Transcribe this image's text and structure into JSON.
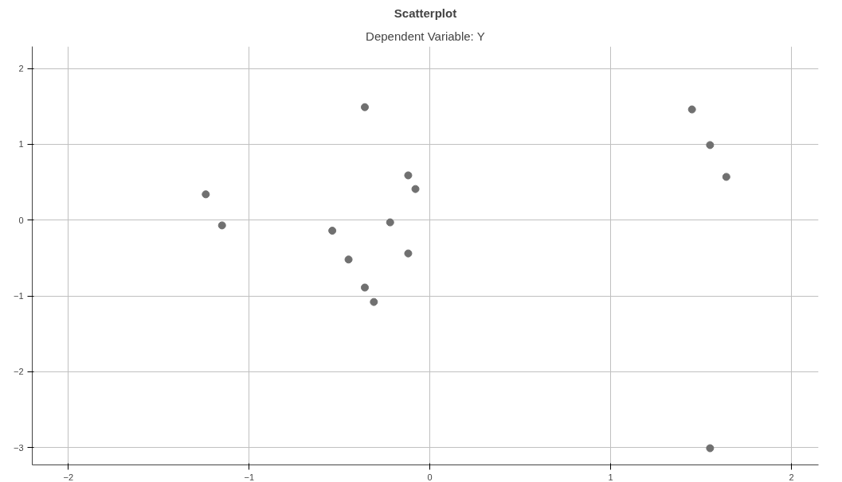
{
  "chart_data": {
    "type": "scatter",
    "title": "Scatterplot",
    "subtitle": "Dependent Variable: Y",
    "x": [
      -0.36,
      1.45,
      1.55,
      1.64,
      -0.12,
      -0.08,
      -1.24,
      -1.15,
      -0.54,
      -0.22,
      -0.12,
      -0.45,
      -0.36,
      -0.31,
      1.55
    ],
    "series": [
      {
        "color": "#707070",
        "values": [
          1.49,
          1.46,
          0.99,
          0.57,
          0.59,
          0.41,
          0.34,
          -0.07,
          -0.14,
          -0.03,
          -0.44,
          -0.52,
          -0.89,
          -1.08,
          -3.01
        ]
      }
    ],
    "xlim": [
      -2.2,
      2.15
    ],
    "ylim": [
      -3.23,
      2.29
    ],
    "xticks": [
      -2,
      -1,
      0,
      1,
      2
    ],
    "yticks": [
      -3,
      -2,
      -1,
      0,
      1,
      2
    ],
    "grid": true,
    "marker": "circle"
  }
}
